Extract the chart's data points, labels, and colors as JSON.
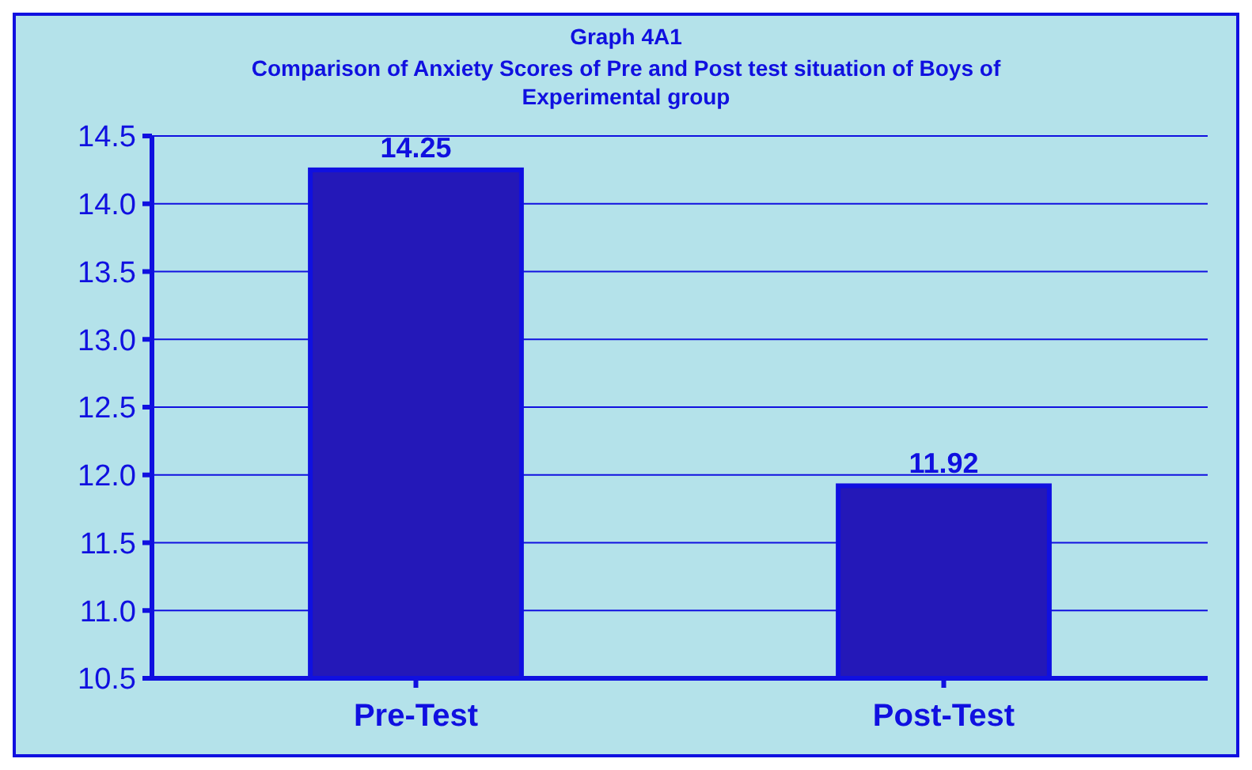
{
  "chart_data": {
    "type": "bar",
    "title": "Graph 4A1",
    "subtitle": "Comparison of Anxiety Scores of Pre and Post test situation of Boys of Experimental group",
    "categories": [
      "Pre-Test",
      "Post-Test"
    ],
    "values": [
      14.25,
      11.92
    ],
    "color": "#2418b8",
    "ylim": [
      10.5,
      14.5
    ],
    "yticks": [
      {
        "value": 10.5,
        "label": "10.5"
      },
      {
        "value": 11,
        "label": "11.0"
      },
      {
        "value": 11.5,
        "label": "11.5"
      },
      {
        "value": 12,
        "label": "12.0"
      },
      {
        "value": 12.5,
        "label": "12.5"
      },
      {
        "value": 13,
        "label": "13.0"
      },
      {
        "value": 13.5,
        "label": "13.5"
      },
      {
        "value": 14,
        "label": "14.0"
      },
      {
        "value": 14.5,
        "label": "14.5"
      }
    ],
    "grid": "y",
    "data_labels": true
  }
}
